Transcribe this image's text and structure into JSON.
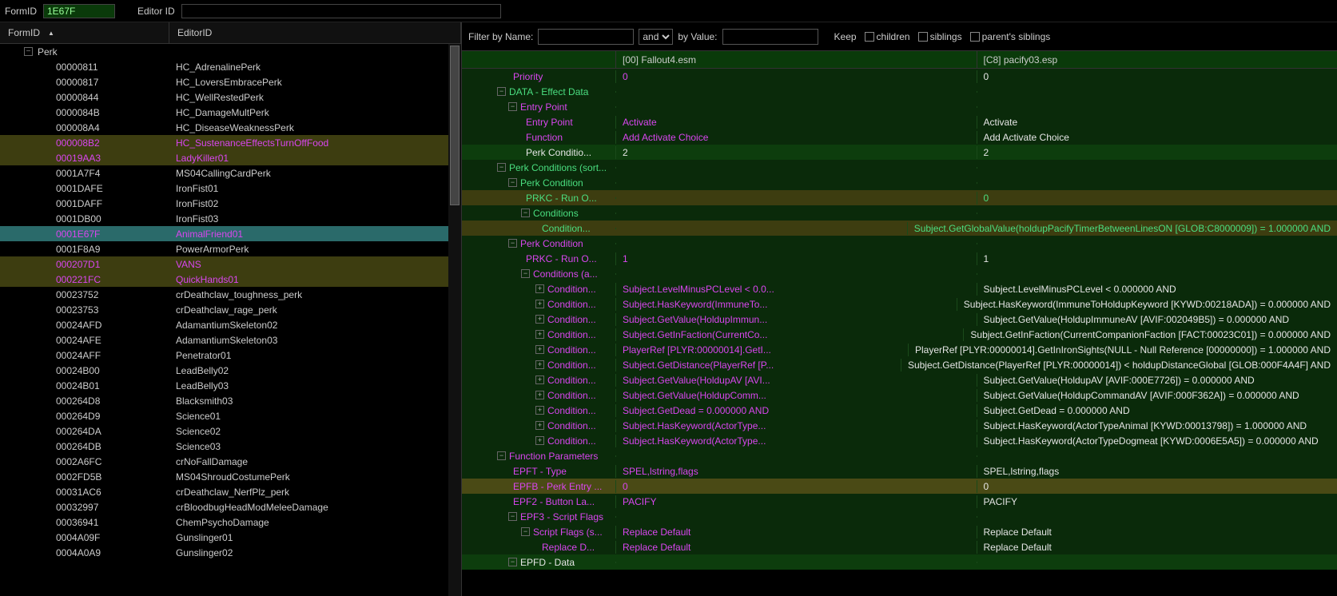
{
  "topbar": {
    "formid_label": "FormID",
    "formid_value": "1E67F",
    "editorid_label": "Editor ID",
    "editorid_value": ""
  },
  "left": {
    "col_formid": "FormID",
    "col_editorid": "EditorID",
    "perk_label": "Perk",
    "rows": [
      {
        "fid": "00000811",
        "eid": "HC_AdrenalinePerk",
        "cls": "normal"
      },
      {
        "fid": "00000817",
        "eid": "HC_LoversEmbracePerk",
        "cls": "normal"
      },
      {
        "fid": "00000844",
        "eid": "HC_WellRestedPerk",
        "cls": "normal"
      },
      {
        "fid": "0000084B",
        "eid": "HC_DamageMultPerk",
        "cls": "normal"
      },
      {
        "fid": "000008A4",
        "eid": "HC_DiseaseWeaknessPerk",
        "cls": "normal"
      },
      {
        "fid": "000008B2",
        "eid": "HC_SustenanceEffectsTurnOffFood",
        "cls": "magenta"
      },
      {
        "fid": "00019AA3",
        "eid": "LadyKiller01",
        "cls": "magenta"
      },
      {
        "fid": "0001A7F4",
        "eid": "MS04CallingCardPerk",
        "cls": "normal"
      },
      {
        "fid": "0001DAFE",
        "eid": "IronFist01",
        "cls": "normal"
      },
      {
        "fid": "0001DAFF",
        "eid": "IronFist02",
        "cls": "normal"
      },
      {
        "fid": "0001DB00",
        "eid": "IronFist03",
        "cls": "normal"
      },
      {
        "fid": "0001E67F",
        "eid": "AnimalFriend01",
        "cls": "selected"
      },
      {
        "fid": "0001F8A9",
        "eid": "PowerArmorPerk",
        "cls": "normal"
      },
      {
        "fid": "000207D1",
        "eid": "VANS",
        "cls": "magenta"
      },
      {
        "fid": "000221FC",
        "eid": "QuickHands01",
        "cls": "magenta"
      },
      {
        "fid": "00023752",
        "eid": "crDeathclaw_toughness_perk",
        "cls": "normal"
      },
      {
        "fid": "00023753",
        "eid": "crDeathclaw_rage_perk",
        "cls": "normal"
      },
      {
        "fid": "00024AFD",
        "eid": "AdamantiumSkeleton02",
        "cls": "normal"
      },
      {
        "fid": "00024AFE",
        "eid": "AdamantiumSkeleton03",
        "cls": "normal"
      },
      {
        "fid": "00024AFF",
        "eid": "Penetrator01",
        "cls": "normal"
      },
      {
        "fid": "00024B00",
        "eid": "LeadBelly02",
        "cls": "normal"
      },
      {
        "fid": "00024B01",
        "eid": "LeadBelly03",
        "cls": "normal"
      },
      {
        "fid": "000264D8",
        "eid": "Blacksmith03",
        "cls": "normal"
      },
      {
        "fid": "000264D9",
        "eid": "Science01",
        "cls": "normal"
      },
      {
        "fid": "000264DA",
        "eid": "Science02",
        "cls": "normal"
      },
      {
        "fid": "000264DB",
        "eid": "Science03",
        "cls": "normal"
      },
      {
        "fid": "0002A6FC",
        "eid": "crNoFallDamage",
        "cls": "normal"
      },
      {
        "fid": "0002FD5B",
        "eid": "MS04ShroudCostumePerk",
        "cls": "normal"
      },
      {
        "fid": "00031AC6",
        "eid": "crDeathclaw_NerfPlz_perk",
        "cls": "normal"
      },
      {
        "fid": "00032997",
        "eid": "crBloodbugHeadModMeleeDamage",
        "cls": "normal"
      },
      {
        "fid": "00036941",
        "eid": "ChemPsychoDamage",
        "cls": "normal"
      },
      {
        "fid": "0004A09F",
        "eid": "Gunslinger01",
        "cls": "normal"
      },
      {
        "fid": "0004A0A9",
        "eid": "Gunslinger02",
        "cls": "normal"
      }
    ]
  },
  "filter": {
    "by_name": "Filter by Name:",
    "and": "and",
    "by_value": "by Value:",
    "keep": "Keep",
    "children": "children",
    "siblings": "siblings",
    "parents": "parent's siblings"
  },
  "record_cols": {
    "c0": "[00] Fallout4.esm",
    "c1": "[C8] pacify03.esp"
  },
  "rows": [
    {
      "indent": 64,
      "exp": "",
      "label": "Priority",
      "lc": "c-magenta",
      "v0": "0",
      "v0c": "c-magenta",
      "v1": "0",
      "v1c": "c-white",
      "bg": "bg-dark"
    },
    {
      "indent": 44,
      "exp": "−",
      "label": "DATA - Effect Data",
      "lc": "c-green",
      "v0": "",
      "v1": "",
      "bg": "bg-dark"
    },
    {
      "indent": 58,
      "exp": "−",
      "label": "Entry Point",
      "lc": "c-magenta",
      "v0": "",
      "v1": "",
      "bg": "bg-dark"
    },
    {
      "indent": 80,
      "exp": "",
      "label": "Entry Point",
      "lc": "c-magenta",
      "v0": "Activate",
      "v0c": "c-magenta",
      "v1": "Activate",
      "v1c": "c-white",
      "bg": "bg-dark"
    },
    {
      "indent": 80,
      "exp": "",
      "label": "Function",
      "lc": "c-magenta",
      "v0": "Add Activate Choice",
      "v0c": "c-magenta",
      "v1": "Add Activate Choice",
      "v1c": "c-white",
      "bg": "bg-dark"
    },
    {
      "indent": 80,
      "exp": "",
      "label": "Perk Conditio...",
      "lc": "c-white",
      "v0": "2",
      "v0c": "c-white",
      "v1": "2",
      "v1c": "c-white",
      "bg": "bg-med"
    },
    {
      "indent": 44,
      "exp": "−",
      "label": "Perk Conditions (sort...",
      "lc": "c-green",
      "v0": "",
      "v1": "",
      "bg": "bg-dark"
    },
    {
      "indent": 58,
      "exp": "−",
      "label": "Perk Condition",
      "lc": "c-green",
      "v0": "",
      "v1": "",
      "bg": "bg-dark"
    },
    {
      "indent": 80,
      "exp": "",
      "label": "PRKC - Run O...",
      "lc": "c-green",
      "v0": "",
      "v1": "0",
      "v1c": "c-green",
      "bg": "bg-olive"
    },
    {
      "indent": 74,
      "exp": "−",
      "label": "Conditions",
      "lc": "c-green",
      "v0": "",
      "v1": "",
      "bg": "bg-dark"
    },
    {
      "indent": 100,
      "exp": "",
      "label": "Condition...",
      "lc": "c-green",
      "v0": "",
      "v1": "Subject.GetGlobalValue(holdupPacifyTimerBetweenLinesON [GLOB:C8000009]) = 1.000000 AND",
      "v1c": "c-green",
      "bg": "bg-olive"
    },
    {
      "indent": 58,
      "exp": "−",
      "label": "Perk Condition",
      "lc": "c-magenta",
      "v0": "",
      "v1": "",
      "bg": "bg-dark"
    },
    {
      "indent": 80,
      "exp": "",
      "label": "PRKC - Run O...",
      "lc": "c-magenta",
      "v0": "1",
      "v0c": "c-magenta",
      "v1": "1",
      "v1c": "c-white",
      "bg": "bg-dark"
    },
    {
      "indent": 74,
      "exp": "−",
      "label": "Conditions (a...",
      "lc": "c-magenta",
      "v0": "",
      "v1": "",
      "bg": "bg-dark"
    },
    {
      "indent": 92,
      "exp": "+",
      "label": "Condition...",
      "lc": "c-magenta",
      "v0": "Subject.LevelMinusPCLevel < 0.0...",
      "v0c": "c-magenta",
      "v1": "Subject.LevelMinusPCLevel < 0.000000 AND",
      "v1c": "c-white",
      "bg": "bg-dark"
    },
    {
      "indent": 92,
      "exp": "+",
      "label": "Condition...",
      "lc": "c-magenta",
      "v0": "Subject.HasKeyword(ImmuneTo...",
      "v0c": "c-magenta",
      "v1": "Subject.HasKeyword(ImmuneToHoldupKeyword [KYWD:00218ADA]) = 0.000000 AND",
      "v1c": "c-white",
      "bg": "bg-dark"
    },
    {
      "indent": 92,
      "exp": "+",
      "label": "Condition...",
      "lc": "c-magenta",
      "v0": "Subject.GetValue(HoldupImmun...",
      "v0c": "c-magenta",
      "v1": "Subject.GetValue(HoldupImmuneAV [AVIF:002049B5]) = 0.000000 AND",
      "v1c": "c-white",
      "bg": "bg-dark"
    },
    {
      "indent": 92,
      "exp": "+",
      "label": "Condition...",
      "lc": "c-magenta",
      "v0": "Subject.GetInFaction(CurrentCo...",
      "v0c": "c-magenta",
      "v1": "Subject.GetInFaction(CurrentCompanionFaction [FACT:00023C01]) = 0.000000 AND",
      "v1c": "c-white",
      "bg": "bg-dark"
    },
    {
      "indent": 92,
      "exp": "+",
      "label": "Condition...",
      "lc": "c-magenta",
      "v0": "PlayerRef [PLYR:00000014].GetI...",
      "v0c": "c-magenta",
      "v1": "PlayerRef [PLYR:00000014].GetInIronSights(NULL - Null Reference [00000000]) = 1.000000 AND",
      "v1c": "c-white",
      "bg": "bg-dark"
    },
    {
      "indent": 92,
      "exp": "+",
      "label": "Condition...",
      "lc": "c-magenta",
      "v0": "Subject.GetDistance(PlayerRef [P...",
      "v0c": "c-magenta",
      "v1": "Subject.GetDistance(PlayerRef [PLYR:00000014]) < holdupDistanceGlobal [GLOB:000F4A4F] AND",
      "v1c": "c-white",
      "bg": "bg-dark"
    },
    {
      "indent": 92,
      "exp": "+",
      "label": "Condition...",
      "lc": "c-magenta",
      "v0": "Subject.GetValue(HoldupAV [AVI...",
      "v0c": "c-magenta",
      "v1": "Subject.GetValue(HoldupAV [AVIF:000E7726]) = 0.000000 AND",
      "v1c": "c-white",
      "bg": "bg-dark"
    },
    {
      "indent": 92,
      "exp": "+",
      "label": "Condition...",
      "lc": "c-magenta",
      "v0": "Subject.GetValue(HoldupComm...",
      "v0c": "c-magenta",
      "v1": "Subject.GetValue(HoldupCommandAV [AVIF:000F362A]) = 0.000000 AND",
      "v1c": "c-white",
      "bg": "bg-dark"
    },
    {
      "indent": 92,
      "exp": "+",
      "label": "Condition...",
      "lc": "c-magenta",
      "v0": "Subject.GetDead = 0.000000 AND",
      "v0c": "c-magenta",
      "v1": "Subject.GetDead = 0.000000 AND",
      "v1c": "c-white",
      "bg": "bg-dark"
    },
    {
      "indent": 92,
      "exp": "+",
      "label": "Condition...",
      "lc": "c-magenta",
      "v0": "Subject.HasKeyword(ActorType...",
      "v0c": "c-magenta",
      "v1": "Subject.HasKeyword(ActorTypeAnimal [KYWD:00013798]) = 1.000000 AND",
      "v1c": "c-white",
      "bg": "bg-dark"
    },
    {
      "indent": 92,
      "exp": "+",
      "label": "Condition...",
      "lc": "c-magenta",
      "v0": "Subject.HasKeyword(ActorType...",
      "v0c": "c-magenta",
      "v1": "Subject.HasKeyword(ActorTypeDogmeat [KYWD:0006E5A5]) = 0.000000 AND",
      "v1c": "c-white",
      "bg": "bg-dark"
    },
    {
      "indent": 44,
      "exp": "−",
      "label": "Function Parameters",
      "lc": "c-magenta",
      "v0": "",
      "v1": "",
      "bg": "bg-dark"
    },
    {
      "indent": 64,
      "exp": "",
      "label": "EPFT - Type",
      "lc": "c-magenta",
      "v0": "SPEL,lstring,flags",
      "v0c": "c-magenta",
      "v1": "SPEL,lstring,flags",
      "v1c": "c-white",
      "bg": "bg-dark"
    },
    {
      "indent": 64,
      "exp": "",
      "label": "EPFB - Perk Entry ...",
      "lc": "c-magenta",
      "v0": "0",
      "v0c": "c-magenta",
      "v1": "0",
      "v1c": "c-white",
      "bg": "bg-hl"
    },
    {
      "indent": 64,
      "exp": "",
      "label": "EPF2 - Button La...",
      "lc": "c-magenta",
      "v0": "PACIFY",
      "v0c": "c-magenta",
      "v1": "PACIFY",
      "v1c": "c-white",
      "bg": "bg-dark"
    },
    {
      "indent": 58,
      "exp": "−",
      "label": "EPF3 - Script Flags",
      "lc": "c-magenta",
      "v0": "",
      "v1": "",
      "bg": "bg-dark"
    },
    {
      "indent": 74,
      "exp": "−",
      "label": "Script Flags (s...",
      "lc": "c-magenta",
      "v0": "Replace Default",
      "v0c": "c-magenta",
      "v1": "Replace Default",
      "v1c": "c-white",
      "bg": "bg-dark"
    },
    {
      "indent": 100,
      "exp": "",
      "label": "Replace D...",
      "lc": "c-magenta",
      "v0": "Replace Default",
      "v0c": "c-magenta",
      "v1": "Replace Default",
      "v1c": "c-white",
      "bg": "bg-dark"
    },
    {
      "indent": 58,
      "exp": "−",
      "label": "EPFD - Data",
      "lc": "c-white",
      "v0": "",
      "v1": "",
      "bg": "bg-med"
    }
  ]
}
